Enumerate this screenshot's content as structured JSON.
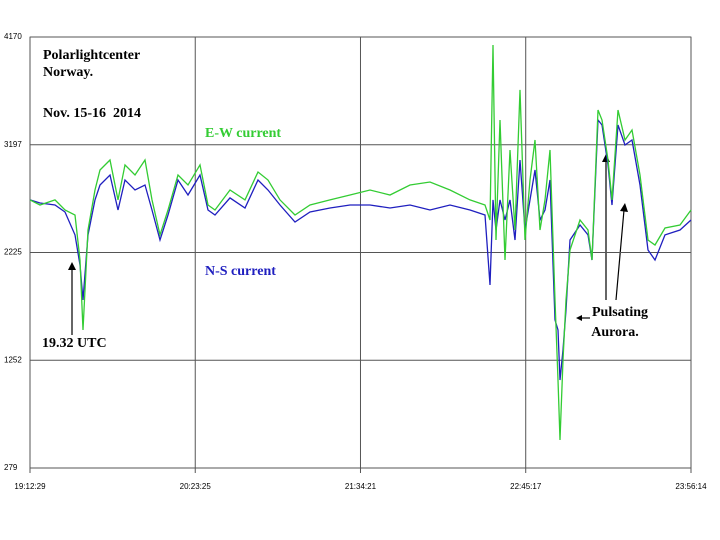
{
  "chart_data": {
    "type": "line",
    "annotations": [
      "Polarlightcenter",
      "Norway.",
      "Nov. 15-16  2014",
      "19.32 UTC",
      "Pulsating",
      "Aurora."
    ],
    "x": [
      "19:12:29",
      "19:16:47",
      "19:23:13",
      "19:27:30",
      "19:31:48",
      "19:33:57",
      "19:35:14",
      "19:37:23",
      "19:40:23",
      "19:42:32",
      "19:46:50",
      "19:50:16",
      "19:53:16",
      "19:57:33",
      "20:01:51",
      "20:04:51",
      "20:08:17",
      "20:11:43",
      "20:16:01",
      "20:20:19",
      "20:25:28",
      "20:28:54",
      "20:31:54",
      "20:38:20",
      "20:44:47",
      "20:50:22",
      "20:54:39",
      "20:59:48",
      "21:06:15",
      "21:12:41",
      "21:21:16",
      "21:29:51",
      "21:38:26",
      "21:47:02",
      "21:55:37",
      "22:04:12",
      "22:12:47",
      "22:21:22",
      "22:27:48",
      "22:29:57",
      "22:31:14",
      "22:32:32",
      "22:34:15",
      "22:36:24",
      "22:38:32",
      "22:40:41",
      "22:42:50",
      "22:44:59",
      "22:47:08",
      "22:49:16",
      "22:51:25",
      "22:53:34",
      "22:55:43",
      "22:57:51",
      "22:59:09",
      "23:00:00",
      "23:01:17",
      "23:02:35",
      "23:04:18",
      "23:08:35",
      "23:12:01",
      "23:13:44",
      "23:16:19",
      "23:18:02",
      "23:20:37",
      "23:22:20",
      "23:24:54",
      "23:27:54",
      "23:30:55",
      "23:34:21",
      "23:37:47",
      "23:40:47",
      "23:45:05",
      "23:51:31",
      "23:56:14"
    ],
    "series": [
      {
        "name": "N-S current",
        "color": "#1f1fbf",
        "values": [
          2699,
          2671,
          2653,
          2590,
          2383,
          2112,
          1796,
          2383,
          2699,
          2834,
          2924,
          2608,
          2879,
          2789,
          2834,
          2608,
          2337,
          2563,
          2879,
          2744,
          2924,
          2608,
          2563,
          2717,
          2626,
          2879,
          2789,
          2653,
          2500,
          2590,
          2626,
          2653,
          2653,
          2626,
          2653,
          2608,
          2653,
          2608,
          2563,
          1931,
          2699,
          2428,
          2699,
          2518,
          2699,
          2337,
          3060,
          2428,
          2699,
          2969,
          2518,
          2608,
          2879,
          1616,
          1525,
          1073,
          1345,
          1706,
          2337,
          2473,
          2383,
          2157,
          3421,
          3376,
          3015,
          2653,
          3376,
          3195,
          3240,
          2834,
          2247,
          2157,
          2383,
          2428,
          2518
        ]
      },
      {
        "name": "E-W current",
        "color": "#33cc33",
        "values": [
          2699,
          2653,
          2699,
          2608,
          2563,
          2157,
          1525,
          2428,
          2789,
          2969,
          3060,
          2699,
          3015,
          2924,
          3060,
          2699,
          2383,
          2608,
          2924,
          2834,
          3015,
          2653,
          2608,
          2789,
          2699,
          2951,
          2879,
          2699,
          2563,
          2653,
          2699,
          2744,
          2789,
          2744,
          2834,
          2861,
          2789,
          2699,
          2653,
          2518,
          4098,
          2337,
          3421,
          2157,
          3150,
          2428,
          3692,
          2337,
          2879,
          3240,
          2428,
          2699,
          3150,
          1796,
          1073,
          532,
          1254,
          1796,
          2247,
          2518,
          2428,
          2157,
          3511,
          3421,
          3060,
          2699,
          3511,
          3240,
          3330,
          2924,
          2337,
          2292,
          2446,
          2473,
          2608
        ]
      }
    ],
    "xlim": [
      "19:12:29",
      "23:56:14"
    ],
    "xticks": [
      "19:12:29",
      "20:23:25",
      "21:34:21",
      "22:45:17",
      "23:56:14"
    ],
    "ylim": [
      279,
      4170
    ],
    "yticks": [
      279,
      1252,
      2225,
      3197,
      4170
    ],
    "grid": true
  }
}
